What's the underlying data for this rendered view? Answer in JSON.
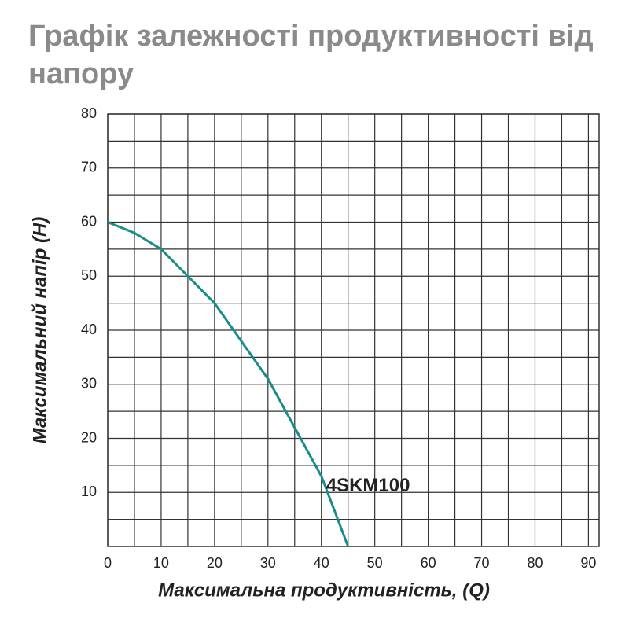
{
  "chart_data": {
    "type": "line",
    "title": "Графік залежності продуктивності від напору",
    "x_label": "Максимальна продуктивність, (Q)",
    "y_label": "Максимальний напір (H)",
    "x": [
      0,
      5,
      10,
      15,
      20,
      25,
      30,
      35,
      40,
      45
    ],
    "series": [
      {
        "name": "4SKM100",
        "color": "#1a8c8c",
        "values": [
          60,
          58,
          55,
          50,
          45,
          38,
          31,
          22,
          13,
          0
        ]
      }
    ],
    "xlim": [
      0,
      92
    ],
    "ylim": [
      0,
      80
    ],
    "xticks": [
      0,
      10,
      20,
      30,
      40,
      50,
      60,
      70,
      80,
      90
    ],
    "yticks": [
      10,
      20,
      30,
      40,
      50,
      60,
      70,
      80
    ],
    "grid": true
  }
}
